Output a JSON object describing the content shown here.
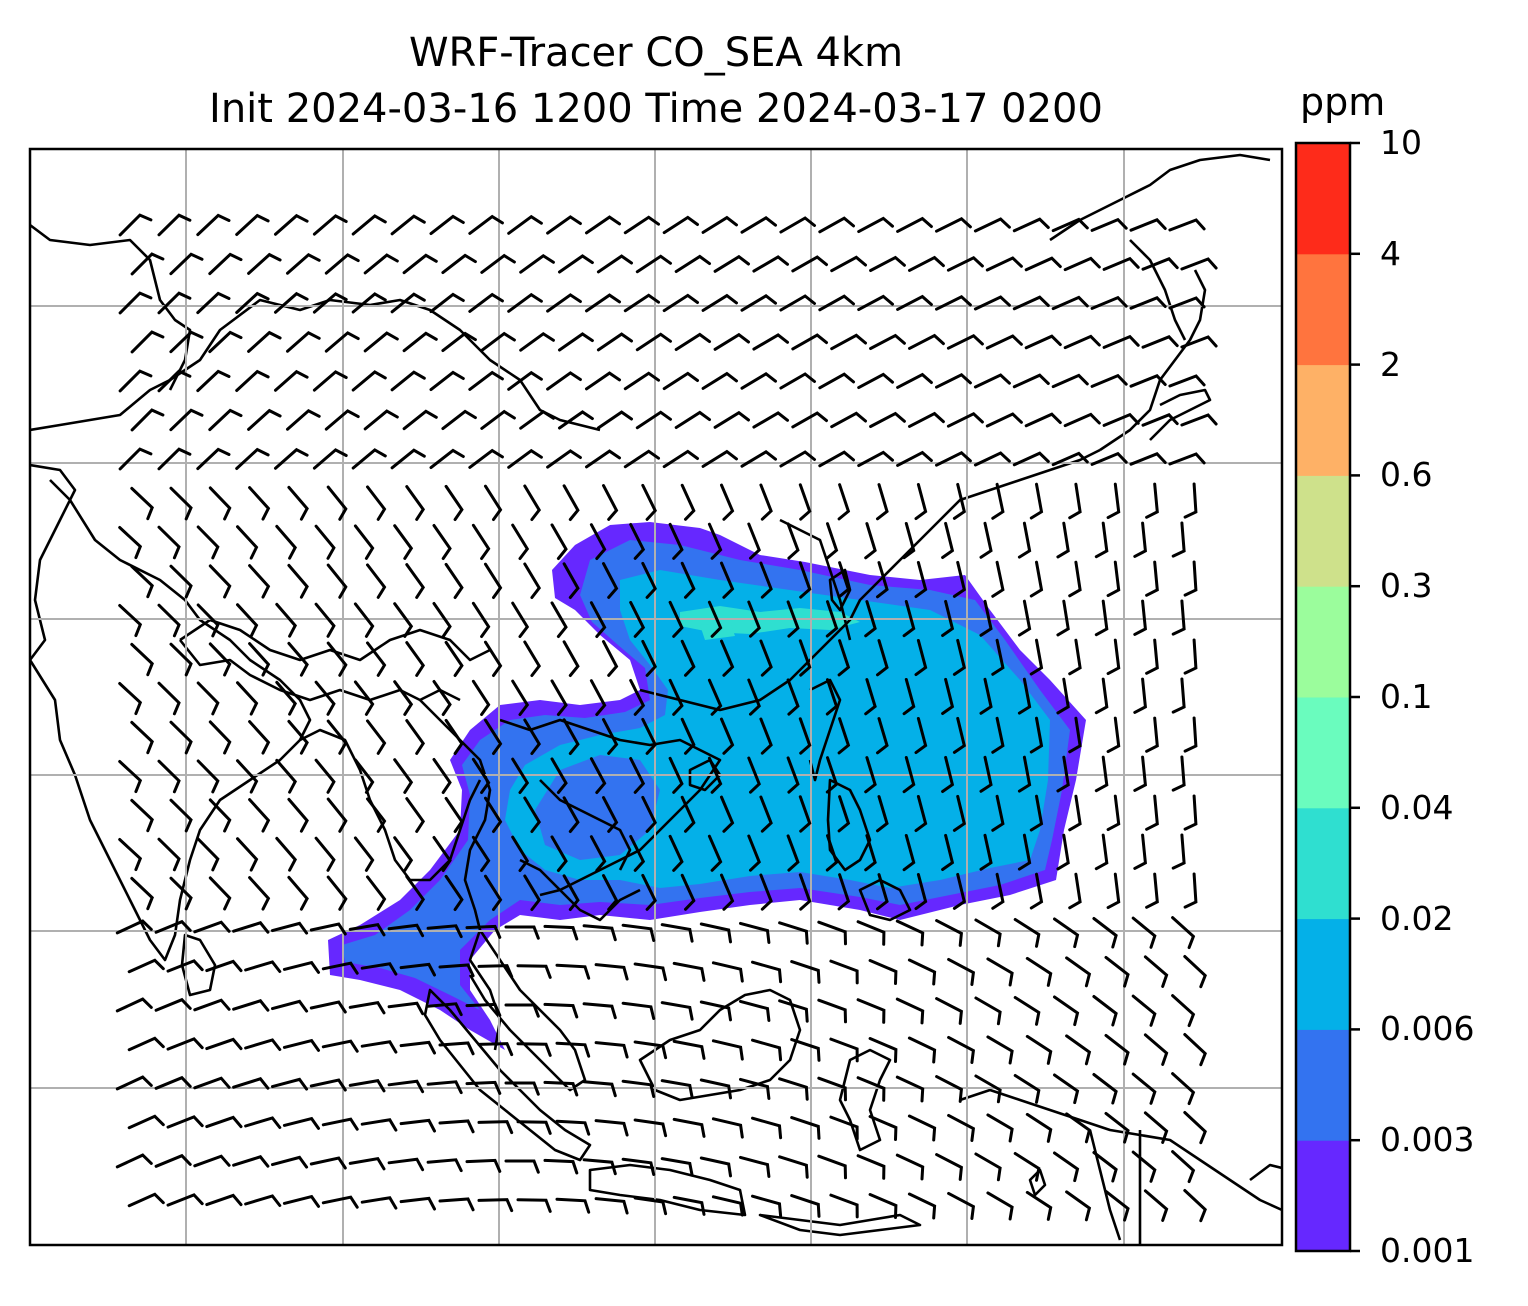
{
  "title": {
    "line1": "WRF-Tracer CO_SEA 4km",
    "line2": "Init 2024-03-16 1200 Time 2024-03-17 0200"
  },
  "colorbar": {
    "unit": "ppm",
    "levels": [
      "0.001",
      "0.003",
      "0.006",
      "0.02",
      "0.04",
      "0.1",
      "0.3",
      "0.6",
      "2",
      "4",
      "10"
    ],
    "colors": [
      "#6628ff",
      "#3373f0",
      "#04b0e8",
      "#2fdfd0",
      "#6afcbe",
      "#9bfd9c",
      "#cee18b",
      "#feb166",
      "#ff743e",
      "#fe2b1a"
    ]
  },
  "map": {
    "region": "Southeast Asia",
    "gridlines": true,
    "features": [
      "coastlines",
      "country borders",
      "wind barbs",
      "CO tracer concentration"
    ]
  }
}
